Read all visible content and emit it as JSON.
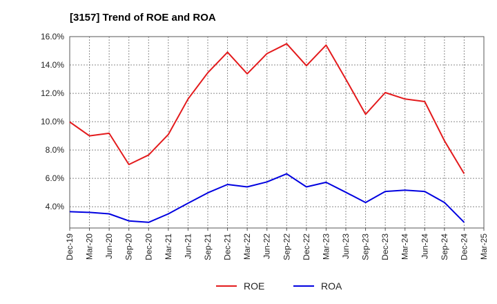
{
  "chart_data": {
    "type": "line",
    "title": "[3157]  Trend of ROE and ROA",
    "xlabel": "",
    "ylabel": "",
    "categories": [
      "Dec-19",
      "Mar-20",
      "Jun-20",
      "Sep-20",
      "Dec-20",
      "Mar-21",
      "Jun-21",
      "Sep-21",
      "Dec-21",
      "Mar-22",
      "Jun-22",
      "Sep-22",
      "Dec-22",
      "Mar-23",
      "Jun-23",
      "Sep-23",
      "Dec-23",
      "Mar-24",
      "Jun-24",
      "Sep-24",
      "Dec-24",
      "Mar-25"
    ],
    "ylim": [
      2.5,
      16.0
    ],
    "yticks": [
      4.0,
      6.0,
      8.0,
      10.0,
      12.0,
      14.0,
      16.0
    ],
    "ytick_labels": [
      "4.0%",
      "6.0%",
      "8.0%",
      "10.0%",
      "12.0%",
      "14.0%",
      "16.0%"
    ],
    "grid": true,
    "legend_position": "bottom",
    "series": [
      {
        "name": "ROE",
        "color": "#e31a1c",
        "values": [
          9.98,
          9.0,
          9.18,
          6.98,
          7.65,
          9.1,
          11.6,
          13.45,
          14.9,
          13.38,
          14.8,
          15.5,
          13.95,
          15.4,
          13.0,
          10.52,
          12.05,
          11.6,
          11.42,
          8.65,
          6.33,
          null
        ]
      },
      {
        "name": "ROA",
        "color": "#0000e0",
        "values": [
          3.65,
          3.6,
          3.5,
          3.0,
          2.9,
          3.5,
          4.25,
          4.98,
          5.57,
          5.4,
          5.75,
          6.32,
          5.4,
          5.72,
          5.02,
          4.3,
          5.08,
          5.17,
          5.08,
          4.3,
          2.9,
          null
        ]
      }
    ]
  }
}
